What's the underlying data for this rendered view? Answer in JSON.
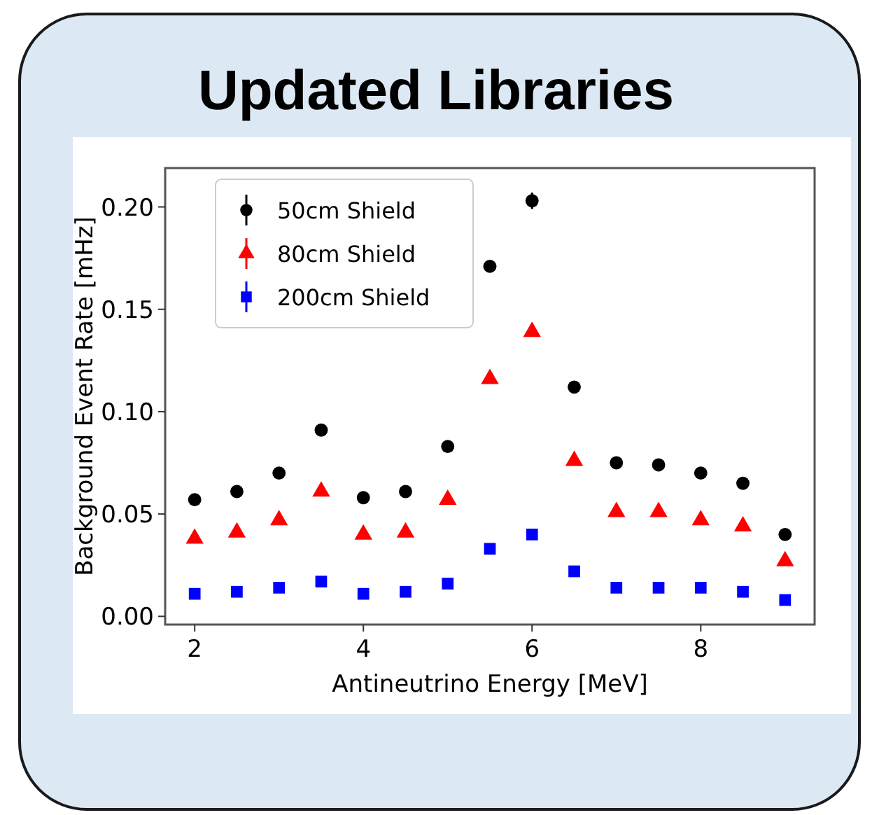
{
  "chart_data": {
    "type": "scatter",
    "title": "Updated Libraries",
    "xlabel": "Antineutrino Energy [MeV]",
    "ylabel": "Background Event Rate [mHz]",
    "x": [
      2,
      2.5,
      3,
      3.5,
      4,
      4.5,
      5,
      5.5,
      6,
      6.5,
      7,
      7.5,
      8,
      8.5,
      9
    ],
    "series": [
      {
        "name": "50cm Shield",
        "color": "#000000",
        "marker": "circle",
        "values": [
          0.057,
          0.061,
          0.07,
          0.091,
          0.058,
          0.061,
          0.083,
          0.171,
          0.203,
          0.112,
          0.075,
          0.074,
          0.07,
          0.065,
          0.04
        ],
        "errors": [
          null,
          null,
          null,
          null,
          null,
          null,
          null,
          null,
          0.004,
          null,
          null,
          null,
          null,
          null,
          null
        ]
      },
      {
        "name": "80cm Shield",
        "color": "#ff0000",
        "marker": "triangle",
        "values": [
          0.038,
          0.041,
          0.047,
          0.061,
          0.04,
          0.041,
          0.057,
          0.116,
          0.139,
          0.076,
          0.051,
          0.051,
          0.047,
          0.044,
          0.027
        ]
      },
      {
        "name": "200cm Shield",
        "color": "#0000ff",
        "marker": "square",
        "values": [
          0.011,
          0.012,
          0.014,
          0.017,
          0.011,
          0.012,
          0.016,
          0.033,
          0.04,
          0.022,
          0.014,
          0.014,
          0.014,
          0.012,
          0.008
        ]
      }
    ],
    "xlim": [
      1.65,
      9.35
    ],
    "ylim": [
      -0.004,
      0.219
    ],
    "xticks": [
      2,
      4,
      6,
      8
    ],
    "yticks": [
      {
        "value": 0,
        "label": "0.00"
      },
      {
        "value": 0.05,
        "label": "0.05"
      },
      {
        "value": 0.1,
        "label": "0.10"
      },
      {
        "value": 0.15,
        "label": "0.15"
      },
      {
        "value": 0.2,
        "label": "0.20"
      }
    ],
    "grid": false,
    "legend": "top left"
  }
}
